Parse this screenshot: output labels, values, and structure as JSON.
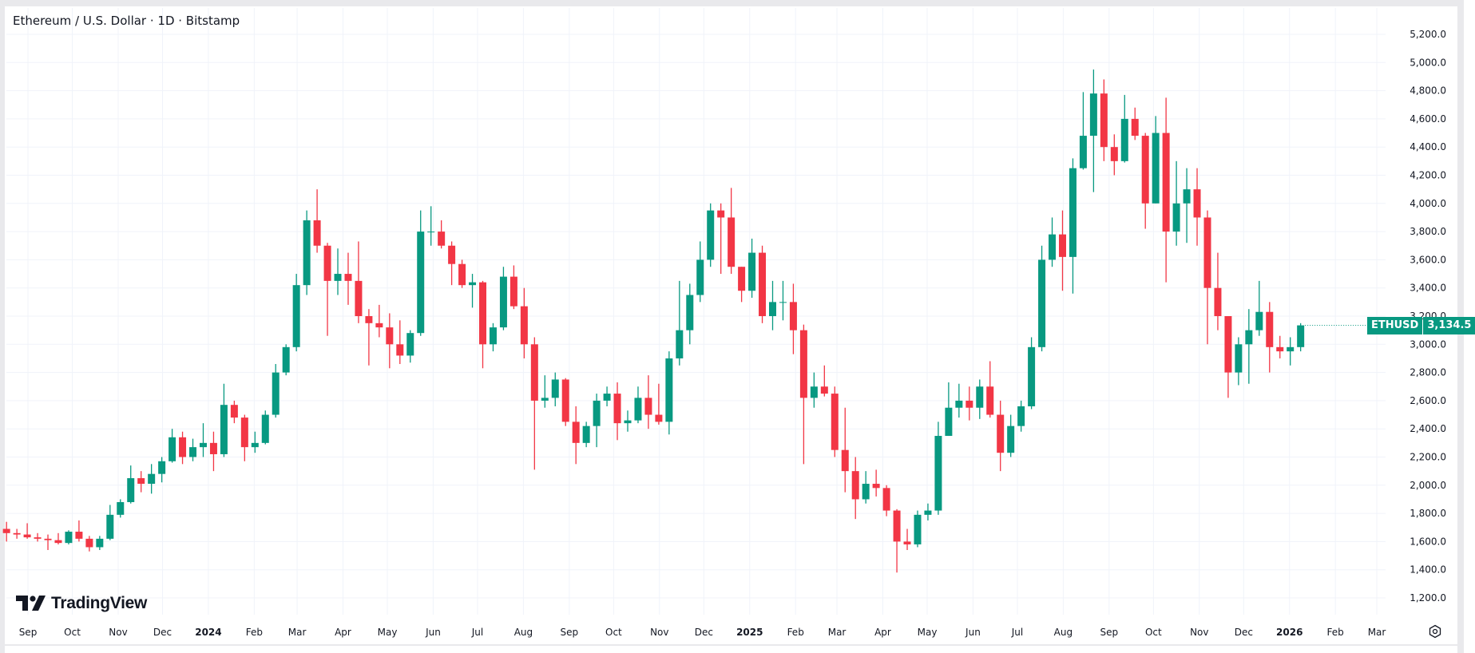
{
  "header": {
    "title": "Ethereum / U.S. Dollar · 1D · Bitstamp"
  },
  "branding": {
    "watermark": "TradingView"
  },
  "price_tag": {
    "symbol": "ETHUSD",
    "price": "3,134.5",
    "color": "#089981"
  },
  "colors": {
    "up": "#089981",
    "down": "#f23645",
    "grid": "#f0f3fa"
  },
  "icons": {
    "settings": "gear-icon",
    "logo": "tradingview-logo-icon"
  },
  "chart_data": {
    "type": "candlestick",
    "title": "Ethereum / U.S. Dollar · 1D · Bitstamp",
    "symbol": "ETHUSD",
    "interval": "1D",
    "last_price": 3134.5,
    "ylim": [
      1100,
      5300
    ],
    "y_ticks": [
      "1,200.0",
      "1,400.0",
      "1,600.0",
      "1,800.0",
      "2,000.0",
      "2,200.0",
      "2,400.0",
      "2,600.0",
      "2,800.0",
      "3,000.0",
      "3,200.0",
      "3,400.0",
      "3,600.0",
      "3,800.0",
      "4,000.0",
      "4,200.0",
      "4,400.0",
      "4,600.0",
      "4,800.0",
      "5,000.0",
      "5,200.0"
    ],
    "x_ticks": [
      {
        "date": "2023-09-01",
        "label": "Sep"
      },
      {
        "date": "2023-10-01",
        "label": "Oct"
      },
      {
        "date": "2023-11-01",
        "label": "Nov"
      },
      {
        "date": "2023-12-01",
        "label": "Dec"
      },
      {
        "date": "2024-01-01",
        "label": "2024"
      },
      {
        "date": "2024-02-01",
        "label": "Feb"
      },
      {
        "date": "2024-03-01",
        "label": "Mar"
      },
      {
        "date": "2024-04-01",
        "label": "Apr"
      },
      {
        "date": "2024-05-01",
        "label": "May"
      },
      {
        "date": "2024-06-01",
        "label": "Jun"
      },
      {
        "date": "2024-07-01",
        "label": "Jul"
      },
      {
        "date": "2024-08-01",
        "label": "Aug"
      },
      {
        "date": "2024-09-01",
        "label": "Sep"
      },
      {
        "date": "2024-10-01",
        "label": "Oct"
      },
      {
        "date": "2024-11-01",
        "label": "Nov"
      },
      {
        "date": "2024-12-01",
        "label": "Dec"
      },
      {
        "date": "2025-01-01",
        "label": "2025"
      },
      {
        "date": "2025-02-01",
        "label": "Feb"
      },
      {
        "date": "2025-03-01",
        "label": "Mar"
      },
      {
        "date": "2025-04-01",
        "label": "Apr"
      },
      {
        "date": "2025-05-01",
        "label": "May"
      },
      {
        "date": "2025-06-01",
        "label": "Jun"
      },
      {
        "date": "2025-07-01",
        "label": "Jul"
      },
      {
        "date": "2025-08-01",
        "label": "Aug"
      },
      {
        "date": "2025-09-01",
        "label": "Sep"
      },
      {
        "date": "2025-10-01",
        "label": "Oct"
      },
      {
        "date": "2025-11-01",
        "label": "Nov"
      },
      {
        "date": "2025-12-01",
        "label": "Dec"
      },
      {
        "date": "2026-01-01",
        "label": "2026"
      },
      {
        "date": "2026-02-01",
        "label": "Feb"
      },
      {
        "date": "2026-03-01",
        "label": "Mar"
      }
    ],
    "grid": true,
    "columns": [
      "date",
      "open",
      "high",
      "low",
      "close"
    ],
    "candles": [
      [
        "2023-08-14",
        1690,
        1740,
        1600,
        1660
      ],
      [
        "2023-08-21",
        1660,
        1690,
        1620,
        1650
      ],
      [
        "2023-08-28",
        1650,
        1730,
        1620,
        1630
      ],
      [
        "2023-09-04",
        1630,
        1660,
        1600,
        1620
      ],
      [
        "2023-09-11",
        1620,
        1650,
        1540,
        1610
      ],
      [
        "2023-09-18",
        1610,
        1660,
        1580,
        1590
      ],
      [
        "2023-09-25",
        1590,
        1680,
        1580,
        1670
      ],
      [
        "2023-10-02",
        1670,
        1750,
        1600,
        1620
      ],
      [
        "2023-10-09",
        1620,
        1640,
        1530,
        1560
      ],
      [
        "2023-10-16",
        1560,
        1640,
        1540,
        1620
      ],
      [
        "2023-10-23",
        1620,
        1860,
        1610,
        1790
      ],
      [
        "2023-10-30",
        1790,
        1900,
        1770,
        1880
      ],
      [
        "2023-11-06",
        1880,
        2140,
        1870,
        2050
      ],
      [
        "2023-11-13",
        2050,
        2100,
        1950,
        2010
      ],
      [
        "2023-11-20",
        2010,
        2150,
        1940,
        2080
      ],
      [
        "2023-11-27",
        2080,
        2200,
        2020,
        2170
      ],
      [
        "2023-12-04",
        2170,
        2400,
        2160,
        2340
      ],
      [
        "2023-12-11",
        2340,
        2380,
        2150,
        2200
      ],
      [
        "2023-12-18",
        2200,
        2330,
        2170,
        2270
      ],
      [
        "2023-12-25",
        2270,
        2440,
        2200,
        2300
      ],
      [
        "2024-01-01",
        2300,
        2380,
        2100,
        2220
      ],
      [
        "2024-01-08",
        2220,
        2720,
        2200,
        2570
      ],
      [
        "2024-01-15",
        2570,
        2600,
        2440,
        2480
      ],
      [
        "2024-01-22",
        2480,
        2500,
        2170,
        2270
      ],
      [
        "2024-01-29",
        2270,
        2380,
        2230,
        2300
      ],
      [
        "2024-02-05",
        2300,
        2530,
        2290,
        2500
      ],
      [
        "2024-02-12",
        2500,
        2860,
        2480,
        2800
      ],
      [
        "2024-02-19",
        2800,
        3000,
        2780,
        2980
      ],
      [
        "2024-02-26",
        2980,
        3500,
        2950,
        3420
      ],
      [
        "2024-03-04",
        3420,
        3950,
        3350,
        3880
      ],
      [
        "2024-03-11",
        3880,
        4100,
        3650,
        3700
      ],
      [
        "2024-03-18",
        3700,
        3720,
        3060,
        3450
      ],
      [
        "2024-03-25",
        3450,
        3680,
        3350,
        3500
      ],
      [
        "2024-04-01",
        3500,
        3650,
        3280,
        3450
      ],
      [
        "2024-04-08",
        3450,
        3730,
        3150,
        3200
      ],
      [
        "2024-04-15",
        3200,
        3250,
        2850,
        3150
      ],
      [
        "2024-04-22",
        3150,
        3280,
        3050,
        3120
      ],
      [
        "2024-04-29",
        3120,
        3220,
        2830,
        3000
      ],
      [
        "2024-05-06",
        3000,
        3170,
        2860,
        2920
      ],
      [
        "2024-05-13",
        2920,
        3100,
        2870,
        3080
      ],
      [
        "2024-05-20",
        3080,
        3950,
        3060,
        3800
      ],
      [
        "2024-05-27",
        3800,
        3980,
        3700,
        3800
      ],
      [
        "2024-06-03",
        3800,
        3880,
        3680,
        3700
      ],
      [
        "2024-06-10",
        3700,
        3730,
        3420,
        3570
      ],
      [
        "2024-06-17",
        3570,
        3600,
        3400,
        3420
      ],
      [
        "2024-06-24",
        3420,
        3500,
        3260,
        3440
      ],
      [
        "2024-07-01",
        3440,
        3450,
        2830,
        3000
      ],
      [
        "2024-07-08",
        3000,
        3150,
        2950,
        3120
      ],
      [
        "2024-07-15",
        3120,
        3550,
        3100,
        3480
      ],
      [
        "2024-07-22",
        3480,
        3560,
        3250,
        3270
      ],
      [
        "2024-07-29",
        3270,
        3400,
        2900,
        3000
      ],
      [
        "2024-08-05",
        3000,
        3050,
        2110,
        2600
      ],
      [
        "2024-08-12",
        2600,
        2780,
        2550,
        2620
      ],
      [
        "2024-08-19",
        2620,
        2800,
        2560,
        2750
      ],
      [
        "2024-08-26",
        2750,
        2760,
        2420,
        2450
      ],
      [
        "2024-09-02",
        2450,
        2560,
        2150,
        2300
      ],
      [
        "2024-09-09",
        2300,
        2450,
        2270,
        2420
      ],
      [
        "2024-09-16",
        2420,
        2650,
        2270,
        2600
      ],
      [
        "2024-09-23",
        2600,
        2700,
        2560,
        2650
      ],
      [
        "2024-09-30",
        2650,
        2730,
        2320,
        2440
      ],
      [
        "2024-10-07",
        2440,
        2530,
        2380,
        2460
      ],
      [
        "2024-10-14",
        2460,
        2700,
        2440,
        2620
      ],
      [
        "2024-10-21",
        2620,
        2780,
        2400,
        2500
      ],
      [
        "2024-10-28",
        2500,
        2720,
        2430,
        2450
      ],
      [
        "2024-11-04",
        2450,
        2950,
        2360,
        2900
      ],
      [
        "2024-11-11",
        2900,
        3450,
        2850,
        3100
      ],
      [
        "2024-11-18",
        3100,
        3430,
        3000,
        3350
      ],
      [
        "2024-11-25",
        3350,
        3730,
        3300,
        3600
      ],
      [
        "2024-12-02",
        3600,
        4000,
        3550,
        3950
      ],
      [
        "2024-12-09",
        3950,
        4000,
        3500,
        3900
      ],
      [
        "2024-12-16",
        3900,
        4110,
        3500,
        3550
      ],
      [
        "2024-12-23",
        3550,
        3550,
        3300,
        3380
      ],
      [
        "2024-12-30",
        3380,
        3750,
        3330,
        3650
      ],
      [
        "2025-01-06",
        3650,
        3700,
        3150,
        3200
      ],
      [
        "2025-01-13",
        3200,
        3450,
        3100,
        3300
      ],
      [
        "2025-01-20",
        3300,
        3450,
        3170,
        3300
      ],
      [
        "2025-01-27",
        3300,
        3430,
        2930,
        3100
      ],
      [
        "2025-02-03",
        3100,
        3140,
        2150,
        2620
      ],
      [
        "2025-02-10",
        2620,
        2800,
        2550,
        2700
      ],
      [
        "2025-02-17",
        2700,
        2850,
        2630,
        2650
      ],
      [
        "2025-02-24",
        2650,
        2700,
        2200,
        2250
      ],
      [
        "2025-03-03",
        2250,
        2550,
        1950,
        2100
      ],
      [
        "2025-03-10",
        2100,
        2200,
        1760,
        1900
      ],
      [
        "2025-03-17",
        1900,
        2100,
        1870,
        2010
      ],
      [
        "2025-03-24",
        2010,
        2110,
        1920,
        1980
      ],
      [
        "2025-03-31",
        1980,
        2000,
        1780,
        1820
      ],
      [
        "2025-04-07",
        1820,
        1830,
        1380,
        1600
      ],
      [
        "2025-04-14",
        1600,
        1690,
        1540,
        1580
      ],
      [
        "2025-04-21",
        1580,
        1820,
        1560,
        1790
      ],
      [
        "2025-04-28",
        1790,
        1870,
        1750,
        1820
      ],
      [
        "2025-05-05",
        1820,
        2450,
        1790,
        2350
      ],
      [
        "2025-05-12",
        2350,
        2730,
        2350,
        2550
      ],
      [
        "2025-05-19",
        2550,
        2720,
        2480,
        2600
      ],
      [
        "2025-05-26",
        2600,
        2700,
        2460,
        2550
      ],
      [
        "2025-06-02",
        2550,
        2750,
        2470,
        2700
      ],
      [
        "2025-06-09",
        2700,
        2880,
        2480,
        2500
      ],
      [
        "2025-06-16",
        2500,
        2600,
        2100,
        2230
      ],
      [
        "2025-06-23",
        2230,
        2500,
        2200,
        2420
      ],
      [
        "2025-06-30",
        2420,
        2600,
        2380,
        2560
      ],
      [
        "2025-07-07",
        2560,
        3050,
        2540,
        2980
      ],
      [
        "2025-07-14",
        2980,
        3700,
        2950,
        3600
      ],
      [
        "2025-07-21",
        3600,
        3900,
        3550,
        3780
      ],
      [
        "2025-07-28",
        3780,
        3950,
        3380,
        3620
      ],
      [
        "2025-08-04",
        3620,
        4320,
        3360,
        4250
      ],
      [
        "2025-08-11",
        4250,
        4790,
        4240,
        4480
      ],
      [
        "2025-08-18",
        4480,
        4950,
        4080,
        4780
      ],
      [
        "2025-08-25",
        4780,
        4880,
        4300,
        4400
      ],
      [
        "2025-09-01",
        4400,
        4490,
        4200,
        4300
      ],
      [
        "2025-09-08",
        4300,
        4770,
        4290,
        4600
      ],
      [
        "2025-09-15",
        4600,
        4680,
        4450,
        4480
      ],
      [
        "2025-09-22",
        4480,
        4500,
        3820,
        4000
      ],
      [
        "2025-09-29",
        4000,
        4620,
        4000,
        4500
      ],
      [
        "2025-10-06",
        4500,
        4750,
        3440,
        3800
      ],
      [
        "2025-10-13",
        3800,
        4300,
        3700,
        4000
      ],
      [
        "2025-10-20",
        4000,
        4250,
        3720,
        4100
      ],
      [
        "2025-10-27",
        4100,
        4250,
        3700,
        3900
      ],
      [
        "2025-11-03",
        3900,
        3950,
        3000,
        3400
      ],
      [
        "2025-11-10",
        3400,
        3650,
        3100,
        3200
      ],
      [
        "2025-11-17",
        3200,
        3200,
        2620,
        2800
      ],
      [
        "2025-11-24",
        2800,
        3050,
        2710,
        3000
      ],
      [
        "2025-12-01",
        3000,
        3250,
        2720,
        3100
      ],
      [
        "2025-12-08",
        3100,
        3450,
        3060,
        3230
      ],
      [
        "2025-12-15",
        3230,
        3300,
        2800,
        2980
      ],
      [
        "2025-12-22",
        2980,
        3060,
        2900,
        2950
      ],
      [
        "2025-12-29",
        2950,
        3050,
        2850,
        2980
      ],
      [
        "2026-01-05",
        2980,
        3150,
        2950,
        3134.5
      ]
    ]
  }
}
